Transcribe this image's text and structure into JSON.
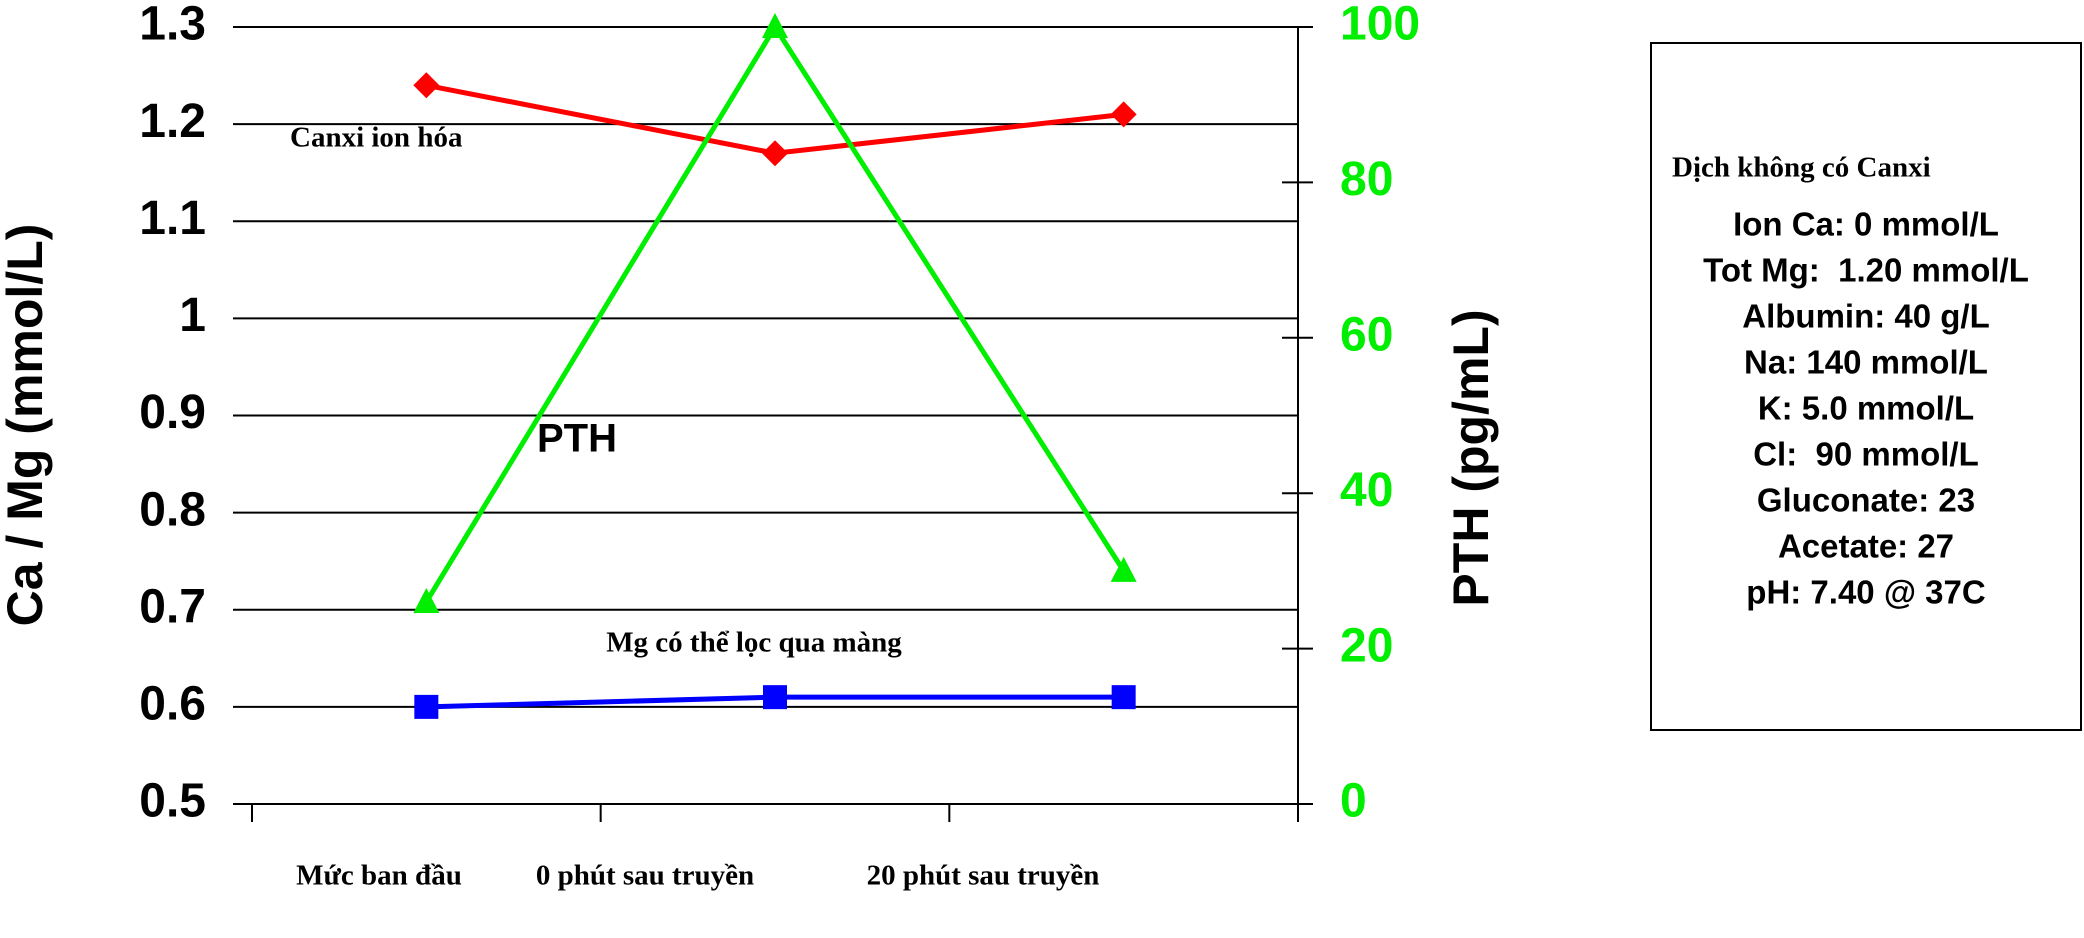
{
  "chart_data": {
    "type": "line",
    "y_label": "Ca / Mg (mmol/L)",
    "y2_label": "PTH (pg/mL)",
    "categories": [
      "Mức ban đầu",
      "0 phút sau truyền",
      "20 phút sau truyền"
    ],
    "ylim": [
      0.5,
      1.3
    ],
    "yticks": [
      0.5,
      0.6,
      0.7,
      0.8,
      0.9,
      1,
      1.1,
      1.2,
      1.3
    ],
    "y2lim": [
      0,
      100
    ],
    "y2ticks": [
      0,
      20,
      40,
      60,
      80,
      100
    ],
    "grid": true,
    "series": [
      {
        "name": "Canxi ion hóa",
        "color": "#ff0000",
        "marker": "diamond",
        "values": [
          1.24,
          1.17,
          1.21
        ]
      },
      {
        "name": "PTH",
        "color": "#00ee00",
        "marker": "triangle",
        "axis": "y2",
        "values": [
          26,
          100,
          30
        ]
      },
      {
        "name": "Mg có thể lọc qua màng",
        "color": "#0000ff",
        "marker": "square",
        "values": [
          0.6,
          0.61,
          0.61
        ]
      }
    ]
  },
  "info_box": {
    "title": "Dịch không có Canxi",
    "lines": [
      "Ion Ca: 0 mmol/L",
      "Tot Mg:  1.20 mmol/L",
      "Albumin: 40 g/L",
      "Na: 140 mmol/L",
      "K: 5.0 mmol/L",
      "Cl:  90 mmol/L",
      "Gluconate: 23",
      "Acetate: 27",
      "pH: 7.40 @ 37C"
    ]
  }
}
